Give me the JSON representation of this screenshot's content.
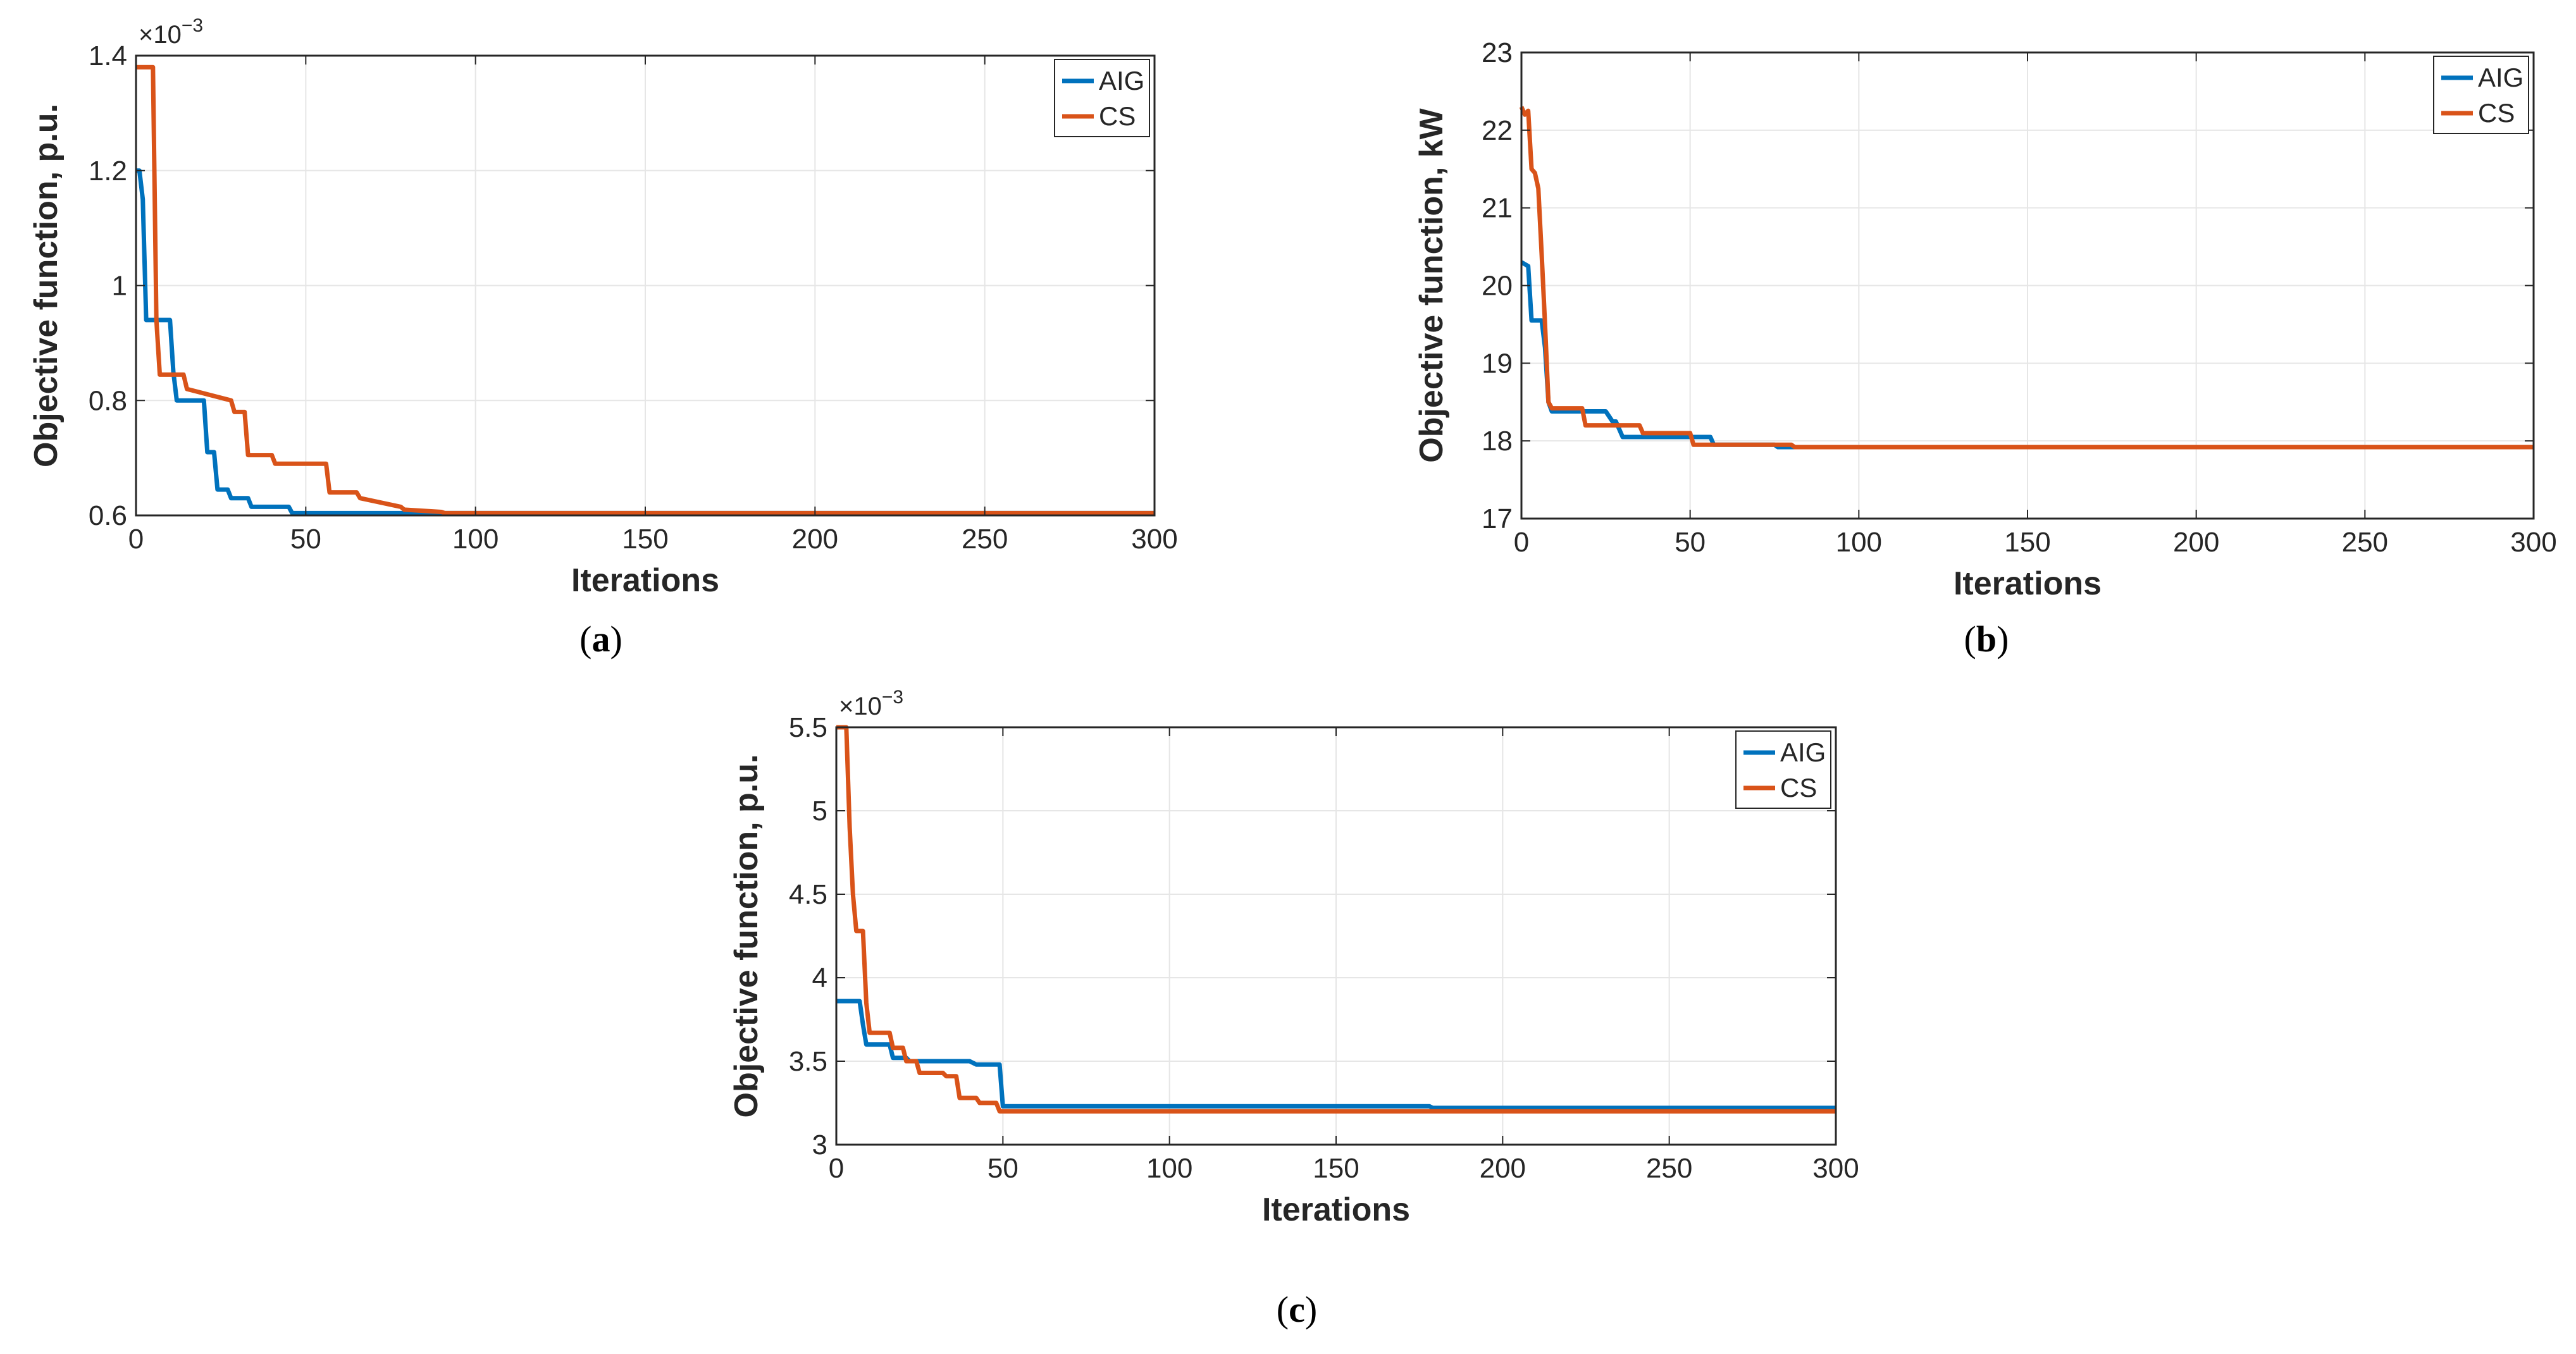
{
  "colors": {
    "aig": "#0072BD",
    "cs": "#D95319",
    "grid": "#e6e6e6",
    "axis": "#262626"
  },
  "chart_data": [
    {
      "type": "line",
      "panel": "(a)",
      "caption_letter": "a",
      "xlabel": "Iterations",
      "ylabel": "Objective function, p.u.",
      "scale_base": "×10",
      "scale_exp": "−3",
      "xlim": [
        0,
        300
      ],
      "ylim": [
        0.6,
        1.4
      ],
      "xticks": [
        0,
        50,
        100,
        150,
        200,
        250,
        300
      ],
      "xtick_labels": [
        "0",
        "50",
        "100",
        "150",
        "200",
        "250",
        "300"
      ],
      "yticks": [
        0.6,
        0.8,
        1.0,
        1.2,
        1.4
      ],
      "ytick_labels": [
        "0.6",
        "0.8",
        "1",
        "1.2",
        "1.4"
      ],
      "grid": true,
      "legend": {
        "position": "top-right",
        "entries": [
          "AIG",
          "CS"
        ]
      },
      "series": [
        {
          "name": "AIG",
          "color_key": "aig",
          "x": [
            0,
            1,
            2,
            3,
            4,
            5,
            10,
            11,
            12,
            13,
            20,
            21,
            23,
            24,
            27,
            28,
            33,
            34,
            45,
            46,
            300
          ],
          "y": [
            1.2,
            1.2,
            1.15,
            0.94,
            0.94,
            0.94,
            0.94,
            0.85,
            0.8,
            0.8,
            0.8,
            0.71,
            0.71,
            0.645,
            0.645,
            0.63,
            0.63,
            0.615,
            0.615,
            0.604,
            0.604
          ]
        },
        {
          "name": "CS",
          "color_key": "cs",
          "x": [
            0,
            1,
            5,
            6,
            7,
            14,
            15,
            28,
            29,
            32,
            33,
            40,
            41,
            56,
            57,
            65,
            66,
            78,
            79,
            90,
            91,
            300
          ],
          "y": [
            1.38,
            1.38,
            1.38,
            0.94,
            0.845,
            0.845,
            0.82,
            0.8,
            0.78,
            0.78,
            0.705,
            0.705,
            0.69,
            0.69,
            0.64,
            0.64,
            0.63,
            0.615,
            0.61,
            0.606,
            0.604,
            0.604
          ]
        }
      ]
    },
    {
      "type": "line",
      "panel": "(b)",
      "caption_letter": "b",
      "xlabel": "Iterations",
      "ylabel": "Objective function, kW",
      "xlim": [
        0,
        300
      ],
      "ylim": [
        17,
        23
      ],
      "xticks": [
        0,
        50,
        100,
        150,
        200,
        250,
        300
      ],
      "xtick_labels": [
        "0",
        "50",
        "100",
        "150",
        "200",
        "250",
        "300"
      ],
      "yticks": [
        17,
        18,
        19,
        20,
        21,
        22,
        23
      ],
      "ytick_labels": [
        "17",
        "18",
        "19",
        "20",
        "21",
        "22",
        "23"
      ],
      "grid": true,
      "legend": {
        "position": "top-right",
        "entries": [
          "AIG",
          "CS"
        ]
      },
      "series": [
        {
          "name": "AIG",
          "color_key": "aig",
          "x": [
            0,
            2,
            3,
            6,
            7,
            8,
            9,
            25,
            27,
            28,
            30,
            55,
            56,
            57,
            75,
            76,
            300
          ],
          "y": [
            20.3,
            20.25,
            19.55,
            19.55,
            19.2,
            18.5,
            18.38,
            18.38,
            18.25,
            18.25,
            18.05,
            18.05,
            18.05,
            17.95,
            17.95,
            17.92,
            17.92
          ]
        },
        {
          "name": "CS",
          "color_key": "cs",
          "x": [
            0,
            1,
            2,
            3,
            4,
            5,
            6,
            7,
            8,
            9,
            18,
            19,
            35,
            36,
            50,
            51,
            80,
            81,
            300
          ],
          "y": [
            22.3,
            22.2,
            22.25,
            21.5,
            21.45,
            21.25,
            20.4,
            19.5,
            18.5,
            18.42,
            18.42,
            18.2,
            18.2,
            18.1,
            18.1,
            17.95,
            17.95,
            17.92,
            17.92
          ]
        }
      ]
    },
    {
      "type": "line",
      "panel": "(c)",
      "caption_letter": "c",
      "xlabel": "Iterations",
      "ylabel": "Objective function, p.u.",
      "scale_base": "×10",
      "scale_exp": "−3",
      "xlim": [
        0,
        300
      ],
      "ylim": [
        3,
        5.5
      ],
      "xticks": [
        0,
        50,
        100,
        150,
        200,
        250,
        300
      ],
      "xtick_labels": [
        "0",
        "50",
        "100",
        "150",
        "200",
        "250",
        "300"
      ],
      "yticks": [
        3,
        3.5,
        4,
        4.5,
        5,
        5.5
      ],
      "ytick_labels": [
        "3",
        "3.5",
        "4",
        "4.5",
        "5",
        "5.5"
      ],
      "grid": true,
      "legend": {
        "position": "top-right",
        "entries": [
          "AIG",
          "CS"
        ]
      },
      "series": [
        {
          "name": "AIG",
          "color_key": "aig",
          "x": [
            0,
            7,
            8,
            9,
            16,
            17,
            21,
            22,
            40,
            42,
            49,
            50,
            178,
            179,
            300
          ],
          "y": [
            3.86,
            3.86,
            3.72,
            3.6,
            3.6,
            3.52,
            3.52,
            3.5,
            3.5,
            3.48,
            3.48,
            3.23,
            3.23,
            3.22,
            3.22
          ]
        },
        {
          "name": "CS",
          "color_key": "cs",
          "x": [
            0,
            3,
            4,
            5,
            6,
            8,
            9,
            10,
            16,
            17,
            20,
            21,
            24,
            25,
            32,
            33,
            36,
            37,
            42,
            43,
            48,
            49,
            300
          ],
          "y": [
            5.5,
            5.5,
            4.9,
            4.5,
            4.28,
            4.28,
            3.85,
            3.67,
            3.67,
            3.58,
            3.58,
            3.5,
            3.5,
            3.43,
            3.43,
            3.41,
            3.41,
            3.28,
            3.28,
            3.25,
            3.25,
            3.2,
            3.2
          ]
        }
      ]
    }
  ]
}
